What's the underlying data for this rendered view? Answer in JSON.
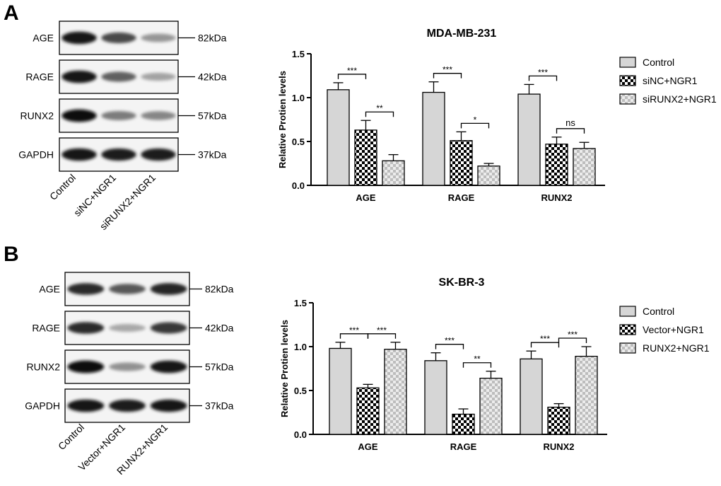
{
  "panels": [
    {
      "letter": "A",
      "blot": {
        "rows": [
          {
            "protein": "AGE",
            "size": "82kDa",
            "intensity": [
              0.95,
              0.72,
              0.38
            ]
          },
          {
            "protein": "RAGE",
            "size": "42kDa",
            "intensity": [
              0.95,
              0.62,
              0.32
            ]
          },
          {
            "protein": "RUNX2",
            "size": "57kDa",
            "intensity": [
              0.97,
              0.5,
              0.45
            ]
          },
          {
            "protein": "GAPDH",
            "size": "37kDa",
            "intensity": [
              0.95,
              0.93,
              0.92
            ]
          }
        ],
        "lanes": [
          "Control",
          "siNC+NGR1",
          "siRUNX2+NGR1"
        ]
      }
    },
    {
      "letter": "B",
      "blot": {
        "rows": [
          {
            "protein": "AGE",
            "size": "82kDa",
            "intensity": [
              0.85,
              0.65,
              0.88
            ]
          },
          {
            "protein": "RAGE",
            "size": "42kDa",
            "intensity": [
              0.85,
              0.3,
              0.8
            ]
          },
          {
            "protein": "RUNX2",
            "size": "57kDa",
            "intensity": [
              0.97,
              0.4,
              0.95
            ]
          },
          {
            "protein": "GAPDH",
            "size": "37kDa",
            "intensity": [
              0.95,
              0.93,
              0.94
            ]
          }
        ],
        "lanes": [
          "Control",
          "Vector+NGR1",
          "RUNX2+NGR1"
        ]
      }
    }
  ],
  "chart_data": [
    {
      "type": "bar",
      "title": "MDA-MB-231",
      "ylabel": "Relative Protien levels",
      "xlabel": "",
      "ylim": [
        0,
        1.5
      ],
      "yticks": [
        "0.0",
        "0.5",
        "1.0",
        "1.5"
      ],
      "categories": [
        "AGE",
        "RAGE",
        "RUNX2"
      ],
      "legend_position": "right",
      "series": [
        {
          "name": "Control",
          "pattern": "solid",
          "values": [
            1.09,
            1.06,
            1.04
          ],
          "errors": [
            0.08,
            0.12,
            0.11
          ]
        },
        {
          "name": "siNC+NGR1",
          "pattern": "checker",
          "values": [
            0.63,
            0.51,
            0.47
          ],
          "errors": [
            0.11,
            0.1,
            0.08
          ]
        },
        {
          "name": "siRUNX2+NGR1",
          "pattern": "light-checker",
          "values": [
            0.28,
            0.22,
            0.42
          ],
          "errors": [
            0.07,
            0.03,
            0.07
          ]
        }
      ],
      "significance": [
        {
          "category": 0,
          "from": 0,
          "to": 1,
          "label": "***"
        },
        {
          "category": 0,
          "from": 1,
          "to": 2,
          "label": "**"
        },
        {
          "category": 1,
          "from": 0,
          "to": 1,
          "label": "***"
        },
        {
          "category": 1,
          "from": 1,
          "to": 2,
          "label": "*"
        },
        {
          "category": 2,
          "from": 0,
          "to": 1,
          "label": "***"
        },
        {
          "category": 2,
          "from": 1,
          "to": 2,
          "label": "ns"
        }
      ]
    },
    {
      "type": "bar",
      "title": "SK-BR-3",
      "ylabel": "Relative Protien levels",
      "xlabel": "",
      "ylim": [
        0,
        1.5
      ],
      "yticks": [
        "0.0",
        "0.5",
        "1.0",
        "1.5"
      ],
      "categories": [
        "AGE",
        "RAGE",
        "RUNX2"
      ],
      "legend_position": "right",
      "series": [
        {
          "name": "Control",
          "pattern": "solid",
          "values": [
            0.98,
            0.84,
            0.86
          ],
          "errors": [
            0.07,
            0.09,
            0.09
          ]
        },
        {
          "name": "Vector+NGR1",
          "pattern": "checker",
          "values": [
            0.53,
            0.23,
            0.31
          ],
          "errors": [
            0.04,
            0.06,
            0.04
          ]
        },
        {
          "name": "RUNX2+NGR1",
          "pattern": "light-checker",
          "values": [
            0.97,
            0.64,
            0.89
          ],
          "errors": [
            0.08,
            0.08,
            0.11
          ]
        }
      ],
      "significance": [
        {
          "category": 0,
          "from": 0,
          "to": 1,
          "label": "***"
        },
        {
          "category": 0,
          "from": 1,
          "to": 2,
          "label": "***"
        },
        {
          "category": 1,
          "from": 0,
          "to": 1,
          "label": "***"
        },
        {
          "category": 1,
          "from": 1,
          "to": 2,
          "label": "**"
        },
        {
          "category": 2,
          "from": 0,
          "to": 1,
          "label": "***"
        },
        {
          "category": 2,
          "from": 1,
          "to": 2,
          "label": "***"
        }
      ]
    }
  ]
}
